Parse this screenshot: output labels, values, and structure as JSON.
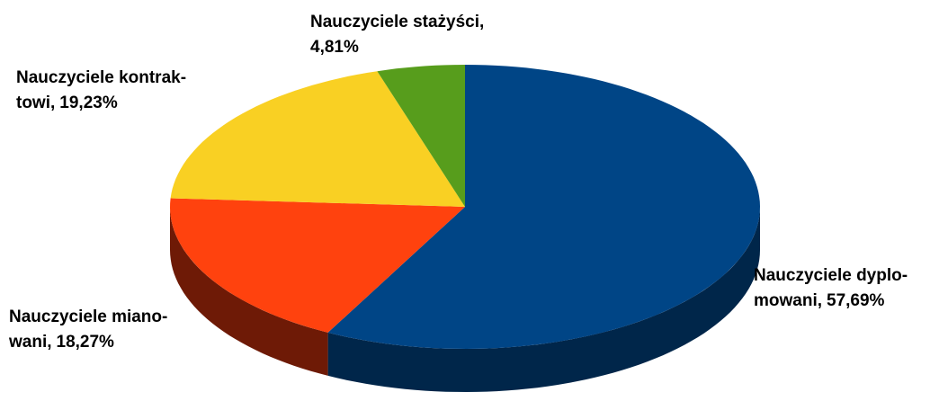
{
  "chart_data": {
    "type": "pie3d",
    "categories": [
      [
        "Nauczyciele dyplo-",
        "mowani,"
      ],
      [
        "Nauczyciele miano-",
        "wani,"
      ],
      [
        "Nauczyciele kontrak-",
        "towi,"
      ],
      [
        "Nauczyciele stażyści,"
      ]
    ],
    "values": [
      57.69,
      18.27,
      19.23,
      4.81
    ],
    "value_labels": [
      "57,69%",
      "18,27%",
      "19,23%",
      "4,81%"
    ],
    "colors": [
      "#004586",
      "#ff420e",
      "#f9d023",
      "#579d1c"
    ],
    "side_colors": [
      "#00264a",
      "#6e1a06",
      "#8a7210",
      "#2f560f"
    ]
  }
}
